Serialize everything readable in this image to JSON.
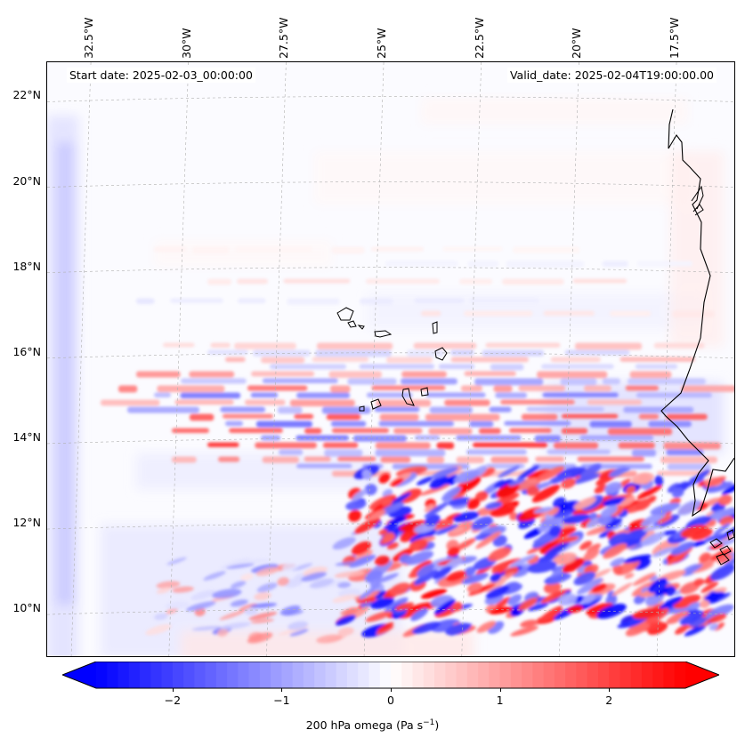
{
  "map": {
    "title_left": "Start date: 2025-02-03_00:00:00",
    "title_right": "Valid_date: 2025-02-04T19:00:00.00",
    "lon_labels": [
      "32.5°W",
      "30°W",
      "27.5°W",
      "25°W",
      "22.5°W",
      "20°W",
      "17.5°W"
    ],
    "lon_values": [
      -32.5,
      -30,
      -27.5,
      -25,
      -22.5,
      -20,
      -17.5
    ],
    "lat_labels": [
      "22°N",
      "20°N",
      "18°N",
      "16°N",
      "14°N",
      "12°N",
      "10°N"
    ],
    "lat_values": [
      22,
      20,
      18,
      16,
      14,
      12,
      10
    ],
    "extent": {
      "lon_min": -33.3,
      "lon_max": -15.7,
      "lat_min": 8.9,
      "lat_max": 22.8
    },
    "variable": "200 hPa omega",
    "units": "Pa s",
    "units_exponent": "−1",
    "colors": {
      "negative": "#0000ff",
      "zero": "#ffffff",
      "positive": "#ff0000",
      "coast": "#000000",
      "grid": "#b0b0b0"
    }
  },
  "colorbar": {
    "min": -2.7,
    "max": 2.7,
    "ticks": [
      -2,
      -1,
      0,
      1,
      2
    ],
    "tick_labels": [
      "−2",
      "−1",
      "0",
      "1",
      "2"
    ],
    "label_main": "200 hPa omega (Pa s",
    "label_sup": "−1",
    "label_end": ")"
  }
}
